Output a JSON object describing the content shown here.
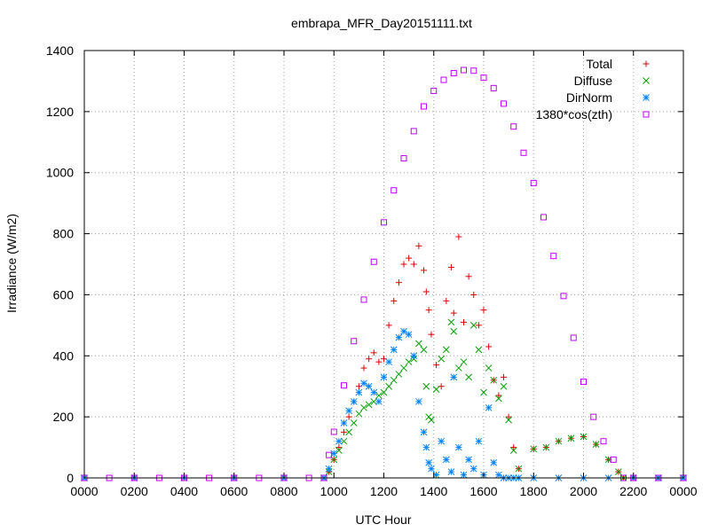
{
  "chart_data": {
    "type": "scatter",
    "title": "embrapa_MFR_Day20151111.txt",
    "xlabel": "UTC Hour",
    "ylabel": "Irradiance (W/m2)",
    "xlim": [
      0,
      24
    ],
    "ylim": [
      0,
      1400
    ],
    "grid": true,
    "legend_position": "top-right",
    "x_ticks": [
      {
        "value": 0,
        "label": "0000"
      },
      {
        "value": 2,
        "label": "0200"
      },
      {
        "value": 4,
        "label": "0400"
      },
      {
        "value": 6,
        "label": "0600"
      },
      {
        "value": 8,
        "label": "0800"
      },
      {
        "value": 10,
        "label": "1000"
      },
      {
        "value": 12,
        "label": "1200"
      },
      {
        "value": 14,
        "label": "1400"
      },
      {
        "value": 16,
        "label": "1600"
      },
      {
        "value": 18,
        "label": "1800"
      },
      {
        "value": 20,
        "label": "2000"
      },
      {
        "value": 22,
        "label": "2200"
      },
      {
        "value": 24,
        "label": "0000"
      }
    ],
    "y_ticks": [
      {
        "value": 0,
        "label": "0"
      },
      {
        "value": 200,
        "label": "200"
      },
      {
        "value": 400,
        "label": "400"
      },
      {
        "value": 600,
        "label": "600"
      },
      {
        "value": 800,
        "label": "800"
      },
      {
        "value": 1000,
        "label": "1000"
      },
      {
        "value": 1200,
        "label": "1200"
      },
      {
        "value": 1400,
        "label": "1400"
      }
    ],
    "series": [
      {
        "name": "Total",
        "marker": "plus",
        "color": "#e00000",
        "points": [
          [
            0,
            0
          ],
          [
            2,
            0
          ],
          [
            4,
            0
          ],
          [
            6,
            0
          ],
          [
            8,
            0
          ],
          [
            9.6,
            0
          ],
          [
            9.8,
            20
          ],
          [
            10,
            60
          ],
          [
            10.2,
            100
          ],
          [
            10.4,
            150
          ],
          [
            10.6,
            200
          ],
          [
            10.8,
            250
          ],
          [
            11,
            300
          ],
          [
            11.2,
            360
          ],
          [
            11.4,
            390
          ],
          [
            11.6,
            410
          ],
          [
            11.8,
            380
          ],
          [
            12,
            390
          ],
          [
            12.2,
            500
          ],
          [
            12.4,
            580
          ],
          [
            12.6,
            640
          ],
          [
            12.8,
            700
          ],
          [
            13,
            720
          ],
          [
            13.2,
            700
          ],
          [
            13.4,
            760
          ],
          [
            13.6,
            680
          ],
          [
            13.7,
            610
          ],
          [
            13.8,
            550
          ],
          [
            13.9,
            470
          ],
          [
            14.1,
            370
          ],
          [
            14.3,
            300
          ],
          [
            14.5,
            580
          ],
          [
            14.7,
            690
          ],
          [
            14.8,
            540
          ],
          [
            15,
            790
          ],
          [
            15.2,
            510
          ],
          [
            15.4,
            660
          ],
          [
            15.6,
            600
          ],
          [
            15.8,
            500
          ],
          [
            16,
            550
          ],
          [
            16.2,
            430
          ],
          [
            16.4,
            320
          ],
          [
            16.6,
            270
          ],
          [
            16.8,
            330
          ],
          [
            17,
            200
          ],
          [
            17.2,
            100
          ],
          [
            17.4,
            30
          ],
          [
            18,
            95
          ],
          [
            18.5,
            100
          ],
          [
            19,
            120
          ],
          [
            19.5,
            130
          ],
          [
            20,
            135
          ],
          [
            20.5,
            110
          ],
          [
            21,
            60
          ],
          [
            21.4,
            20
          ],
          [
            21.6,
            0
          ],
          [
            22,
            0
          ],
          [
            23,
            0
          ],
          [
            24,
            0
          ]
        ]
      },
      {
        "name": "Diffuse",
        "marker": "x",
        "color": "#00a000",
        "points": [
          [
            0,
            0
          ],
          [
            2,
            0
          ],
          [
            4,
            0
          ],
          [
            6,
            0
          ],
          [
            8,
            0
          ],
          [
            9.6,
            0
          ],
          [
            9.8,
            20
          ],
          [
            10,
            60
          ],
          [
            10.2,
            90
          ],
          [
            10.4,
            120
          ],
          [
            10.6,
            150
          ],
          [
            10.8,
            180
          ],
          [
            11,
            210
          ],
          [
            11.2,
            230
          ],
          [
            11.4,
            240
          ],
          [
            11.6,
            250
          ],
          [
            11.8,
            270
          ],
          [
            12,
            280
          ],
          [
            12.2,
            300
          ],
          [
            12.4,
            320
          ],
          [
            12.6,
            340
          ],
          [
            12.8,
            360
          ],
          [
            13,
            380
          ],
          [
            13.2,
            390
          ],
          [
            13.4,
            440
          ],
          [
            13.6,
            420
          ],
          [
            13.7,
            300
          ],
          [
            13.8,
            200
          ],
          [
            13.9,
            190
          ],
          [
            14.1,
            290
          ],
          [
            14.3,
            390
          ],
          [
            14.5,
            420
          ],
          [
            14.7,
            510
          ],
          [
            14.8,
            480
          ],
          [
            15,
            360
          ],
          [
            15.2,
            380
          ],
          [
            15.4,
            330
          ],
          [
            15.6,
            500
          ],
          [
            15.8,
            420
          ],
          [
            16,
            280
          ],
          [
            16.2,
            360
          ],
          [
            16.4,
            320
          ],
          [
            16.6,
            260
          ],
          [
            16.8,
            300
          ],
          [
            17,
            190
          ],
          [
            17.2,
            90
          ],
          [
            17.4,
            30
          ],
          [
            18,
            95
          ],
          [
            18.5,
            100
          ],
          [
            19,
            120
          ],
          [
            19.5,
            130
          ],
          [
            20,
            135
          ],
          [
            20.5,
            110
          ],
          [
            21,
            60
          ],
          [
            21.4,
            20
          ],
          [
            21.6,
            0
          ],
          [
            22,
            0
          ],
          [
            23,
            0
          ],
          [
            24,
            0
          ]
        ]
      },
      {
        "name": "DirNorm",
        "marker": "star",
        "color": "#0080ff",
        "points": [
          [
            0,
            0
          ],
          [
            2,
            0
          ],
          [
            4,
            0
          ],
          [
            6,
            0
          ],
          [
            8,
            0
          ],
          [
            9.6,
            0
          ],
          [
            9.8,
            30
          ],
          [
            10,
            80
          ],
          [
            10.2,
            120
          ],
          [
            10.4,
            180
          ],
          [
            10.6,
            220
          ],
          [
            10.8,
            250
          ],
          [
            11,
            280
          ],
          [
            11.2,
            310
          ],
          [
            11.4,
            300
          ],
          [
            11.6,
            280
          ],
          [
            11.8,
            250
          ],
          [
            12,
            330
          ],
          [
            12.2,
            380
          ],
          [
            12.4,
            420
          ],
          [
            12.6,
            460
          ],
          [
            12.8,
            480
          ],
          [
            13,
            470
          ],
          [
            13.2,
            400
          ],
          [
            13.4,
            250
          ],
          [
            13.6,
            150
          ],
          [
            13.7,
            100
          ],
          [
            13.8,
            50
          ],
          [
            13.9,
            30
          ],
          [
            14.1,
            10
          ],
          [
            14.3,
            120
          ],
          [
            14.5,
            60
          ],
          [
            14.7,
            20
          ],
          [
            14.8,
            330
          ],
          [
            15,
            100
          ],
          [
            15.2,
            10
          ],
          [
            15.4,
            60
          ],
          [
            15.6,
            30
          ],
          [
            15.8,
            120
          ],
          [
            16,
            10
          ],
          [
            16.2,
            230
          ],
          [
            16.4,
            50
          ],
          [
            16.6,
            10
          ],
          [
            16.8,
            0
          ],
          [
            17,
            0
          ],
          [
            17.2,
            0
          ],
          [
            17.4,
            0
          ],
          [
            18,
            0
          ],
          [
            19,
            0
          ],
          [
            20,
            0
          ],
          [
            21,
            0
          ],
          [
            22,
            0
          ],
          [
            23,
            0
          ],
          [
            24,
            0
          ]
        ]
      },
      {
        "name": "1380*cos(zth)",
        "marker": "square",
        "color": "#c000ff",
        "points": [
          [
            0,
            0
          ],
          [
            1,
            0
          ],
          [
            2,
            0
          ],
          [
            3,
            0
          ],
          [
            4,
            0
          ],
          [
            5,
            0
          ],
          [
            6,
            0
          ],
          [
            7,
            0
          ],
          [
            8,
            0
          ],
          [
            9,
            0
          ],
          [
            9.6,
            0
          ],
          [
            9.8,
            75
          ],
          [
            10,
            151
          ],
          [
            10.4,
            303
          ],
          [
            10.8,
            448
          ],
          [
            11.2,
            584
          ],
          [
            11.6,
            708
          ],
          [
            12,
            837
          ],
          [
            12.4,
            942
          ],
          [
            12.8,
            1047
          ],
          [
            13.2,
            1136
          ],
          [
            13.6,
            1217
          ],
          [
            14,
            1268
          ],
          [
            14.4,
            1304
          ],
          [
            14.8,
            1326
          ],
          [
            15.2,
            1336
          ],
          [
            15.6,
            1334
          ],
          [
            16,
            1311
          ],
          [
            16.4,
            1277
          ],
          [
            16.8,
            1226
          ],
          [
            17.2,
            1151
          ],
          [
            17.6,
            1065
          ],
          [
            18,
            966
          ],
          [
            18.4,
            854
          ],
          [
            18.8,
            727
          ],
          [
            19.2,
            596
          ],
          [
            19.6,
            459
          ],
          [
            20,
            315
          ],
          [
            20.4,
            200
          ],
          [
            20.8,
            120
          ],
          [
            21.2,
            60
          ],
          [
            21.6,
            0
          ],
          [
            22,
            0
          ],
          [
            23,
            0
          ],
          [
            24,
            0
          ]
        ]
      }
    ]
  }
}
